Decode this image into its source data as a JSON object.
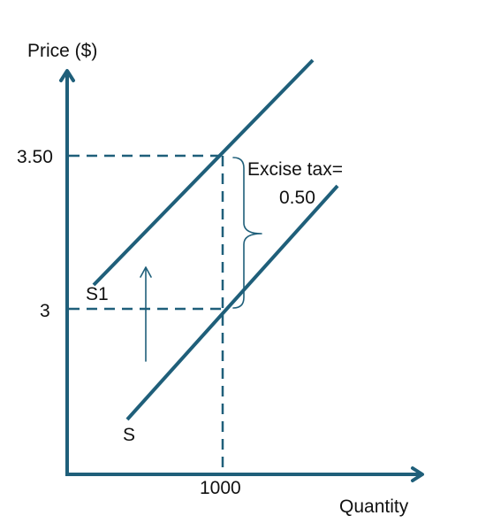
{
  "diagram": {
    "y_axis_label": "Price ($)",
    "x_axis_label": "Quantity",
    "y_tick_high": "3.50",
    "y_tick_low": "3",
    "x_tick": "1000",
    "original_supply_label": "S",
    "shifted_supply_label": "S1",
    "tax_label_line1": "Excise tax=",
    "tax_label_line2": "0.50"
  },
  "colors": {
    "line": "#1f5f7a",
    "text": "#111111"
  }
}
